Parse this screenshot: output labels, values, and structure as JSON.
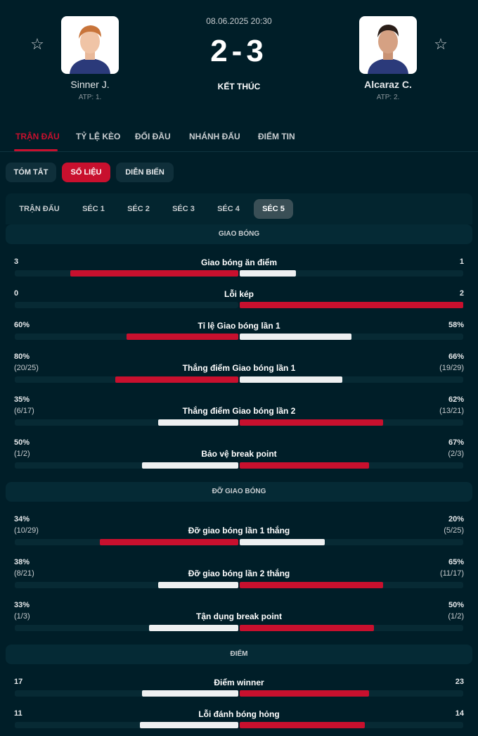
{
  "match": {
    "datetime": "08.06.2025 20:30",
    "score": "2-3",
    "status": "KẾT THÚC",
    "home": {
      "name": "Sinner J.",
      "rank": "ATP: 1."
    },
    "away": {
      "name": "Alcaraz C.",
      "rank": "ATP: 2."
    }
  },
  "nav_tabs": [
    "TRẬN ĐẤU",
    "TỶ LỆ KÈO",
    "ĐỐI ĐẦU",
    "NHÁNH ĐẤU",
    "ĐIỂM TIN"
  ],
  "sub_tabs": [
    "TÓM TẮT",
    "SỐ LIỆU",
    "DIỄN BIẾN"
  ],
  "set_tabs": [
    "TRẬN ĐẤU",
    "SÉC 1",
    "SÉC 2",
    "SÉC 3",
    "SÉC 4",
    "SÉC 5"
  ],
  "colors": {
    "accent": "#c8102e",
    "background": "#001e28",
    "bar_light": "#eef0f1"
  },
  "sections": [
    {
      "title": "GIAO BÓNG",
      "stats": [
        {
          "label": "Giao bóng ăn điểm",
          "left": "3",
          "right": "1",
          "lf": 0.75,
          "rf": 0.25,
          "winner": "left"
        },
        {
          "label": "Lỗi kép",
          "left": "0",
          "right": "2",
          "lf": 0.0,
          "rf": 1.0,
          "winner": "right"
        },
        {
          "label": "Tỉ lệ Giao bóng lần 1",
          "left": "60%",
          "right": "58%",
          "lf": 0.5,
          "rf": 0.5,
          "winner": "left"
        },
        {
          "label": "Thắng điểm Giao bóng lần 1",
          "left": "80%",
          "left_sub": "(20/25)",
          "right": "66%",
          "right_sub": "(19/29)",
          "lf": 0.55,
          "rf": 0.46,
          "winner": "left"
        },
        {
          "label": "Thắng điểm Giao bóng lần 2",
          "left": "35%",
          "left_sub": "(6/17)",
          "right": "62%",
          "right_sub": "(13/21)",
          "lf": 0.36,
          "rf": 0.64,
          "winner": "right"
        },
        {
          "label": "Bảo vệ break point",
          "left": "50%",
          "left_sub": "(1/2)",
          "right": "67%",
          "right_sub": "(2/3)",
          "lf": 0.43,
          "rf": 0.58,
          "winner": "right"
        }
      ]
    },
    {
      "title": "ĐỠ GIAO BÓNG",
      "stats": [
        {
          "label": "Đỡ giao bóng lần 1 thắng",
          "left": "34%",
          "left_sub": "(10/29)",
          "right": "20%",
          "right_sub": "(5/25)",
          "lf": 0.62,
          "rf": 0.38,
          "winner": "left"
        },
        {
          "label": "Đỡ giao bóng lần 2 thắng",
          "left": "38%",
          "left_sub": "(8/21)",
          "right": "65%",
          "right_sub": "(11/17)",
          "lf": 0.36,
          "rf": 0.64,
          "winner": "right"
        },
        {
          "label": "Tận dụng break point",
          "left": "33%",
          "left_sub": "(1/3)",
          "right": "50%",
          "right_sub": "(1/2)",
          "lf": 0.4,
          "rf": 0.6,
          "winner": "right"
        }
      ]
    },
    {
      "title": "ĐIỂM",
      "stats": [
        {
          "label": "Điểm winner",
          "left": "17",
          "right": "23",
          "lf": 0.43,
          "rf": 0.58,
          "winner": "right"
        },
        {
          "label": "Lỗi đánh bóng hỏng",
          "left": "11",
          "right": "14",
          "lf": 0.44,
          "rf": 0.56,
          "winner": "right"
        }
      ]
    }
  ]
}
